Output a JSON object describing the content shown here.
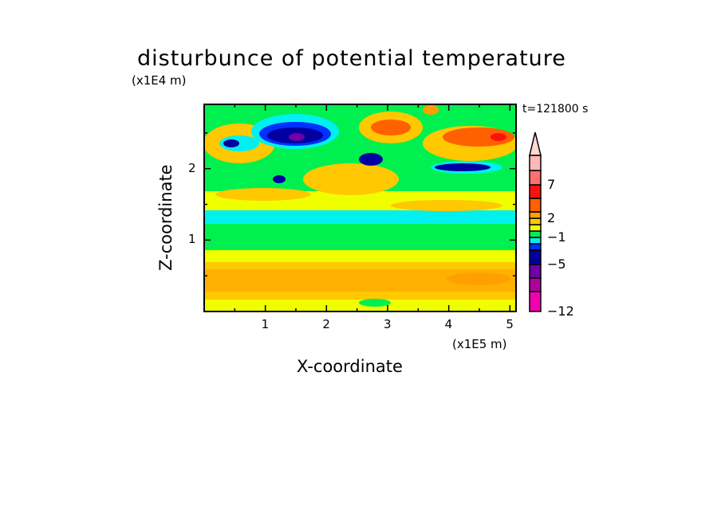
{
  "chart_data": {
    "type": "heatmap",
    "title": "disturbunce of potential temperature",
    "xlabel": "X-coordinate",
    "ylabel": "Z-coordinate",
    "x_scale_label": "(x1E5 m)",
    "y_scale_label": "(x1E4 m)",
    "time_label": "t=121800 s",
    "xlim": [
      0,
      5.1
    ],
    "ylim": [
      0,
      2.9
    ],
    "xticks": [
      "1",
      "2",
      "3",
      "4",
      "5"
    ],
    "yticks": [
      "1",
      "2"
    ],
    "colorbar": {
      "levels": [
        -12,
        -9,
        -7,
        -5,
        -3,
        -2,
        -1,
        0,
        1,
        2,
        3,
        5,
        7,
        9,
        12
      ],
      "labels": [
        "7",
        "2",
        "−1",
        "−5",
        "−12"
      ],
      "label_values": [
        7,
        2,
        -1,
        -5,
        -12
      ],
      "colors": [
        "#f000b0",
        "#b000a0",
        "#7000a8",
        "#0000a0",
        "#0030ff",
        "#00f0f0",
        "#00f050",
        "#f0ff00",
        "#ffc800",
        "#ffa000",
        "#ff6000",
        "#ff1010",
        "#ff7070",
        "#ffb8b8",
        "#ffd8d0"
      ],
      "extend": "max"
    }
  }
}
